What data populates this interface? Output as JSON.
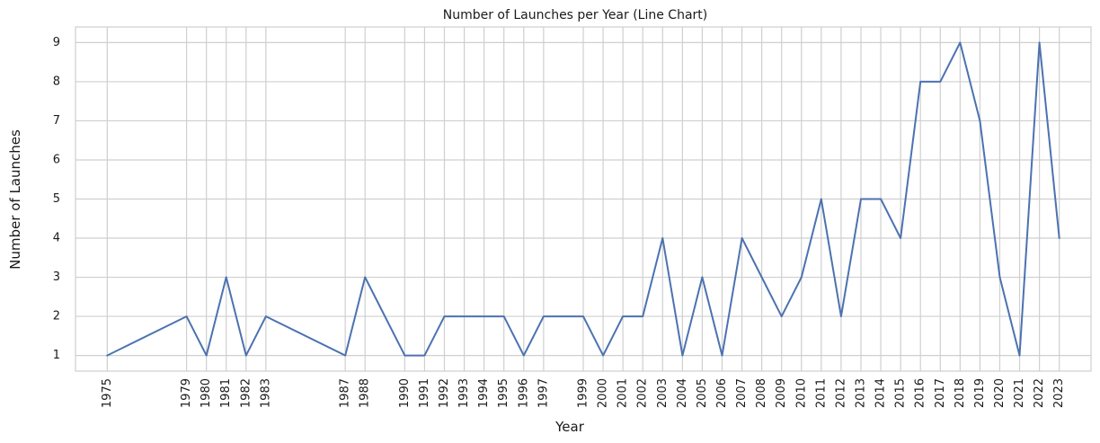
{
  "chart_data": {
    "type": "line",
    "title": "Number of Launches per Year (Line Chart)",
    "xlabel": "Year",
    "ylabel": "Number of Launches",
    "x": [
      1975,
      1979,
      1980,
      1981,
      1982,
      1983,
      1987,
      1988,
      1990,
      1991,
      1992,
      1993,
      1994,
      1995,
      1996,
      1997,
      1999,
      2000,
      2001,
      2002,
      2003,
      2004,
      2005,
      2006,
      2007,
      2008,
      2009,
      2010,
      2011,
      2012,
      2013,
      2014,
      2015,
      2016,
      2017,
      2018,
      2019,
      2020,
      2021,
      2022,
      2023
    ],
    "series": [
      {
        "values": [
          1,
          2,
          1,
          3,
          1,
          2,
          1,
          3,
          1,
          1,
          2,
          2,
          2,
          2,
          1,
          2,
          2,
          1,
          2,
          2,
          4,
          1,
          3,
          1,
          4,
          3,
          2,
          3,
          5,
          2,
          5,
          5,
          4,
          8,
          8,
          9,
          7,
          3,
          1,
          9,
          4
        ],
        "color": "#4c72b0"
      }
    ],
    "yticks": [
      1,
      2,
      3,
      4,
      5,
      6,
      7,
      8,
      9
    ],
    "xlim": [
      1973.4,
      2024.6
    ],
    "ylim": [
      0.6,
      9.4
    ],
    "grid": true,
    "xtick_rotation": "vertical"
  }
}
